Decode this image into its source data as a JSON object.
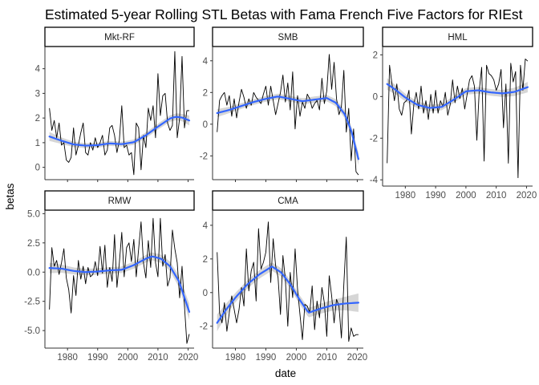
{
  "chart_data": {
    "type": "line",
    "title": "Estimated 5-year Rolling STL Betas with Fama French Five Factors for RIEst",
    "xlabel": "date",
    "ylabel": "betas",
    "x_ticks": [
      "1980",
      "1990",
      "2000",
      "2010",
      "2020"
    ],
    "colors": {
      "raw_line": "#000000",
      "smooth_line": "#3366ff",
      "ribbon": "#c8c8c8"
    },
    "panels": [
      {
        "name": "Mkt-RF",
        "strip_label": "Mkt-RF",
        "xlim": [
          1972.5,
          2022
        ],
        "ylim": [
          -0.5,
          4.9
        ],
        "y_ticks": [
          0,
          1,
          2,
          3,
          4
        ],
        "y_tick_labels": [
          "0",
          "1",
          "2",
          "3",
          "4"
        ],
        "raw": {
          "x": [
            1974.0,
            1974.8,
            1975.6,
            1976.4,
            1977.2,
            1978.0,
            1978.8,
            1979.6,
            1980.4,
            1981.2,
            1982.0,
            1982.8,
            1983.6,
            1984.4,
            1985.2,
            1986.0,
            1986.8,
            1987.6,
            1988.4,
            1989.2,
            1990.0,
            1990.8,
            1991.6,
            1992.4,
            1993.2,
            1994.0,
            1994.8,
            1995.6,
            1996.4,
            1997.2,
            1998.0,
            1998.8,
            1999.6,
            2000.4,
            2001.2,
            2002.0,
            2002.8,
            2003.6,
            2004.4,
            2005.2,
            2006.0,
            2006.8,
            2007.6,
            2008.4,
            2009.2,
            2010.0,
            2010.8,
            2011.6,
            2012.4,
            2013.2,
            2014.0,
            2014.8,
            2015.6,
            2016.4,
            2017.2,
            2018.0,
            2018.8,
            2019.6,
            2020.4
          ],
          "y": [
            2.4,
            1.5,
            1.9,
            1.2,
            1.8,
            0.9,
            1.0,
            0.3,
            0.2,
            0.4,
            1.6,
            0.5,
            0.9,
            1.4,
            1.8,
            0.6,
            0.5,
            1.0,
            0.7,
            1.2,
            0.8,
            1.0,
            1.3,
            0.5,
            0.7,
            1.6,
            1.7,
            1.3,
            0.6,
            1.1,
            2.5,
            0.8,
            0.9,
            0.5,
            0.6,
            -0.3,
            1.8,
            1.6,
            -0.1,
            1.3,
            0.8,
            2.4,
            1.9,
            2.5,
            1.2,
            3.8,
            2.1,
            2.9,
            3.0,
            1.8,
            1.5,
            1.7,
            4.7,
            1.2,
            2.0,
            4.5,
            1.6,
            2.3,
            2.3
          ]
        },
        "smooth": {
          "x": [
            1974,
            1978,
            1982,
            1986,
            1990,
            1994,
            1998,
            2002,
            2006,
            2010,
            2014,
            2016,
            2018,
            2020.4
          ],
          "y": [
            1.25,
            1.08,
            0.93,
            0.88,
            0.9,
            0.97,
            0.94,
            1.02,
            1.3,
            1.65,
            1.98,
            2.05,
            2.02,
            1.9
          ],
          "se": [
            0.18,
            0.13,
            0.11,
            0.1,
            0.1,
            0.1,
            0.1,
            0.11,
            0.12,
            0.12,
            0.13,
            0.14,
            0.15,
            0.2
          ]
        }
      },
      {
        "name": "SMB",
        "strip_label": "SMB",
        "xlim": [
          1972.5,
          2022
        ],
        "ylim": [
          -3.5,
          4.9
        ],
        "y_ticks": [
          -2,
          0,
          2,
          4
        ],
        "y_tick_labels": [
          "-2",
          "0",
          "2",
          "4"
        ],
        "raw": {
          "x": [
            1974.0,
            1974.8,
            1975.6,
            1976.4,
            1977.2,
            1978.0,
            1978.8,
            1979.6,
            1980.4,
            1981.2,
            1982.0,
            1982.8,
            1983.6,
            1984.4,
            1985.2,
            1986.0,
            1986.8,
            1987.6,
            1988.4,
            1989.2,
            1990.0,
            1990.8,
            1991.6,
            1992.4,
            1993.2,
            1994.0,
            1994.8,
            1995.6,
            1996.4,
            1997.2,
            1998.0,
            1998.8,
            1999.6,
            2000.4,
            2001.2,
            2002.0,
            2002.8,
            2003.6,
            2004.4,
            2005.2,
            2006.0,
            2006.8,
            2007.6,
            2008.4,
            2009.2,
            2010.0,
            2010.8,
            2011.6,
            2012.4,
            2013.2,
            2014.0,
            2014.8,
            2015.6,
            2016.4,
            2017.2,
            2018.0,
            2018.8,
            2019.6,
            2020.4
          ],
          "y": [
            -0.5,
            1.5,
            1.8,
            2.0,
            1.2,
            1.8,
            0.5,
            1.6,
            0.4,
            1.4,
            2.2,
            1.7,
            1.0,
            1.6,
            1.2,
            2.0,
            1.7,
            1.5,
            1.3,
            1.9,
            2.4,
            1.2,
            2.4,
            1.5,
            0.6,
            1.3,
            2.0,
            3.1,
            1.4,
            2.6,
            0.9,
            3.3,
            -0.3,
            1.8,
            0.5,
            1.4,
            1.0,
            1.9,
            1.6,
            1.0,
            1.3,
            1.5,
            0.9,
            2.9,
            1.3,
            2.1,
            4.4,
            2.2,
            3.9,
            1.6,
            0.6,
            1.1,
            3.4,
            -0.5,
            1.0,
            -2.3,
            -0.3,
            -3.0,
            -3.2
          ]
        },
        "smooth": {
          "x": [
            1974,
            1978,
            1982,
            1986,
            1990,
            1994,
            1998,
            2002,
            2006,
            2010,
            2013,
            2016,
            2018,
            2020.4
          ],
          "y": [
            0.7,
            0.9,
            1.15,
            1.4,
            1.6,
            1.75,
            1.6,
            1.45,
            1.55,
            1.65,
            1.35,
            0.6,
            -0.4,
            -2.2
          ],
          "se": [
            0.25,
            0.2,
            0.18,
            0.18,
            0.18,
            0.18,
            0.18,
            0.19,
            0.2,
            0.2,
            0.22,
            0.25,
            0.3,
            0.4
          ]
        }
      },
      {
        "name": "HML",
        "strip_label": "HML",
        "xlim": [
          1972.5,
          2022
        ],
        "ylim": [
          -4.3,
          2.4
        ],
        "y_ticks": [
          -4,
          -2,
          0,
          2
        ],
        "y_tick_labels": [
          "-4",
          "-2",
          "0",
          "2"
        ],
        "raw": {
          "x": [
            1974.0,
            1974.8,
            1975.6,
            1976.4,
            1977.2,
            1978.0,
            1978.8,
            1979.6,
            1980.4,
            1981.2,
            1982.0,
            1982.8,
            1983.6,
            1984.4,
            1985.2,
            1986.0,
            1986.8,
            1987.6,
            1988.4,
            1989.2,
            1990.0,
            1990.8,
            1991.6,
            1992.4,
            1993.2,
            1994.0,
            1994.8,
            1995.6,
            1996.4,
            1997.2,
            1998.0,
            1998.8,
            1999.6,
            2000.4,
            2001.2,
            2002.0,
            2002.8,
            2003.6,
            2004.4,
            2005.2,
            2006.0,
            2006.8,
            2007.6,
            2008.4,
            2009.2,
            2010.0,
            2010.8,
            2011.6,
            2012.4,
            2013.2,
            2014.0,
            2014.8,
            2015.6,
            2016.4,
            2017.2,
            2018.0,
            2018.8,
            2019.6,
            2020.4
          ],
          "y": [
            -3.2,
            1.5,
            0.6,
            -0.2,
            0.6,
            -0.6,
            -0.9,
            -0.3,
            -0.2,
            0.3,
            -1.8,
            -0.4,
            0.2,
            -0.6,
            0.5,
            -0.8,
            -0.2,
            -1.1,
            0.1,
            -0.8,
            0.3,
            -0.8,
            -0.2,
            -0.5,
            0.2,
            -0.9,
            -0.4,
            0.8,
            -0.3,
            0.5,
            -0.1,
            0.4,
            -0.6,
            0.1,
            0.8,
            1.0,
            0.5,
            -2.1,
            0.3,
            1.4,
            -3.1,
            1.5,
            1.1,
            1.0,
            0.8,
            0.3,
            0.6,
            1.3,
            -1.5,
            0.6,
            -3.2,
            1.6,
            0.7,
            1.2,
            -3.9,
            1.5,
            0.3,
            1.8,
            1.7
          ]
        },
        "smooth": {
          "x": [
            1974,
            1977,
            1980,
            1984,
            1988,
            1992,
            1996,
            2000,
            2004,
            2008,
            2012,
            2016,
            2020.4
          ],
          "y": [
            0.6,
            0.3,
            -0.05,
            -0.4,
            -0.55,
            -0.5,
            -0.15,
            0.25,
            0.3,
            0.2,
            0.15,
            0.22,
            0.45
          ],
          "se": [
            0.28,
            0.22,
            0.18,
            0.16,
            0.16,
            0.16,
            0.16,
            0.16,
            0.16,
            0.16,
            0.17,
            0.2,
            0.25
          ]
        }
      },
      {
        "name": "RMW",
        "strip_label": "RMW",
        "xlim": [
          1972.5,
          2022
        ],
        "ylim": [
          -6.5,
          5.3
        ],
        "y_ticks": [
          -5,
          -2.5,
          0,
          2.5,
          5
        ],
        "y_tick_labels": [
          "-5.0",
          "-2.5",
          "0.0",
          "2.5",
          "5.0"
        ],
        "raw": {
          "x": [
            1974.0,
            1974.8,
            1975.6,
            1976.4,
            1977.2,
            1978.0,
            1978.8,
            1979.6,
            1980.4,
            1981.2,
            1982.0,
            1982.8,
            1983.6,
            1984.4,
            1985.2,
            1986.0,
            1986.8,
            1987.6,
            1988.4,
            1989.2,
            1990.0,
            1990.8,
            1991.6,
            1992.4,
            1993.2,
            1994.0,
            1994.8,
            1995.6,
            1996.4,
            1997.2,
            1998.0,
            1998.8,
            1999.6,
            2000.4,
            2001.2,
            2002.0,
            2002.8,
            2003.6,
            2004.4,
            2005.2,
            2006.0,
            2006.8,
            2007.6,
            2008.4,
            2009.2,
            2010.0,
            2010.8,
            2011.6,
            2012.4,
            2013.2,
            2014.0,
            2014.8,
            2015.6,
            2016.4,
            2017.2,
            2018.0,
            2018.8,
            2019.6,
            2020.4
          ],
          "y": [
            -3.2,
            2.1,
            0.5,
            1.0,
            -0.2,
            0.8,
            2.0,
            -0.5,
            -1.5,
            -3.5,
            -0.3,
            -2.0,
            1.0,
            -0.6,
            0.5,
            -1.0,
            0.4,
            -0.4,
            -0.2,
            0.9,
            -0.3,
            2.2,
            -0.1,
            2.3,
            -1.3,
            0.4,
            -0.8,
            3.2,
            -1.3,
            0.8,
            3.4,
            -0.4,
            2.1,
            2.5,
            0.9,
            2.8,
            -0.4,
            2.0,
            4.3,
            0.8,
            -0.5,
            2.7,
            0.4,
            4.6,
            0.8,
            -0.4,
            4.6,
            0.5,
            1.5,
            -1.2,
            -0.5,
            3.6,
            2.0,
            0.8,
            -2.2,
            0.5,
            -2.9,
            -6.1,
            -5.3
          ]
        },
        "smooth": {
          "x": [
            1974,
            1978,
            1982,
            1986,
            1990,
            1994,
            1998,
            2002,
            2006,
            2008,
            2011,
            2014,
            2017,
            2020.4
          ],
          "y": [
            0.35,
            0.3,
            0.1,
            0.0,
            0.05,
            0.15,
            0.2,
            0.6,
            1.15,
            1.35,
            1.15,
            0.5,
            -0.8,
            -3.4
          ],
          "se": [
            0.45,
            0.35,
            0.3,
            0.28,
            0.28,
            0.28,
            0.28,
            0.3,
            0.32,
            0.34,
            0.36,
            0.4,
            0.5,
            0.7
          ]
        }
      },
      {
        "name": "CMA",
        "strip_label": "CMA",
        "xlim": [
          1972.5,
          2022
        ],
        "ylim": [
          -3.3,
          4.9
        ],
        "y_ticks": [
          -2,
          0,
          2,
          4
        ],
        "y_tick_labels": [
          "-2",
          "0",
          "2",
          "4"
        ],
        "raw": {
          "x": [
            1974.0,
            1974.8,
            1975.6,
            1976.4,
            1977.2,
            1978.0,
            1978.8,
            1979.6,
            1980.4,
            1981.2,
            1982.0,
            1982.8,
            1983.6,
            1984.4,
            1985.2,
            1986.0,
            1986.8,
            1987.6,
            1988.4,
            1989.2,
            1990.0,
            1990.8,
            1991.6,
            1992.4,
            1993.2,
            1994.0,
            1994.8,
            1995.6,
            1996.4,
            1997.2,
            1998.0,
            1998.8,
            1999.6,
            2000.4,
            2001.2,
            2002.0,
            2002.8,
            2003.6,
            2004.4,
            2005.2,
            2006.0,
            2006.8,
            2007.6,
            2008.4,
            2009.2,
            2010.0,
            2010.8,
            2011.6,
            2012.4,
            2013.2,
            2014.0,
            2014.8,
            2015.6,
            2016.4,
            2017.2,
            2018.0,
            2018.8,
            2019.6,
            2020.4
          ],
          "y": [
            2.4,
            -1.2,
            -1.8,
            -0.6,
            -2.3,
            -1.2,
            -0.2,
            -1.0,
            -1.8,
            -1.0,
            0.3,
            -0.8,
            2.6,
            0.1,
            1.3,
            1.8,
            -0.5,
            3.8,
            1.4,
            1.8,
            2.4,
            4.2,
            0.6,
            3.2,
            1.6,
            0.9,
            -1.3,
            2.2,
            0.8,
            -2.0,
            1.2,
            -0.3,
            2.6,
            0.2,
            -1.3,
            -2.8,
            -0.7,
            -0.8,
            -1.2,
            0.4,
            -2.2,
            -0.5,
            -1.5,
            0.3,
            -0.6,
            -2.6,
            1.0,
            -0.2,
            -1.8,
            -0.4,
            -0.8,
            -2.7,
            0.5,
            3.3,
            -2.9,
            -2.1,
            -2.6,
            -2.5,
            -2.5
          ]
        },
        "smooth": {
          "x": [
            1974,
            1977,
            1980,
            1984,
            1988,
            1992,
            1995,
            1998,
            2001,
            2004,
            2008,
            2012,
            2016,
            2020.4
          ],
          "y": [
            -1.8,
            -1.0,
            -0.3,
            0.5,
            1.1,
            1.55,
            1.2,
            0.5,
            -0.4,
            -1.2,
            -0.95,
            -0.75,
            -0.65,
            -0.6
          ],
          "se": [
            0.5,
            0.35,
            0.28,
            0.25,
            0.25,
            0.25,
            0.25,
            0.25,
            0.27,
            0.28,
            0.3,
            0.32,
            0.4,
            0.55
          ]
        }
      }
    ]
  }
}
